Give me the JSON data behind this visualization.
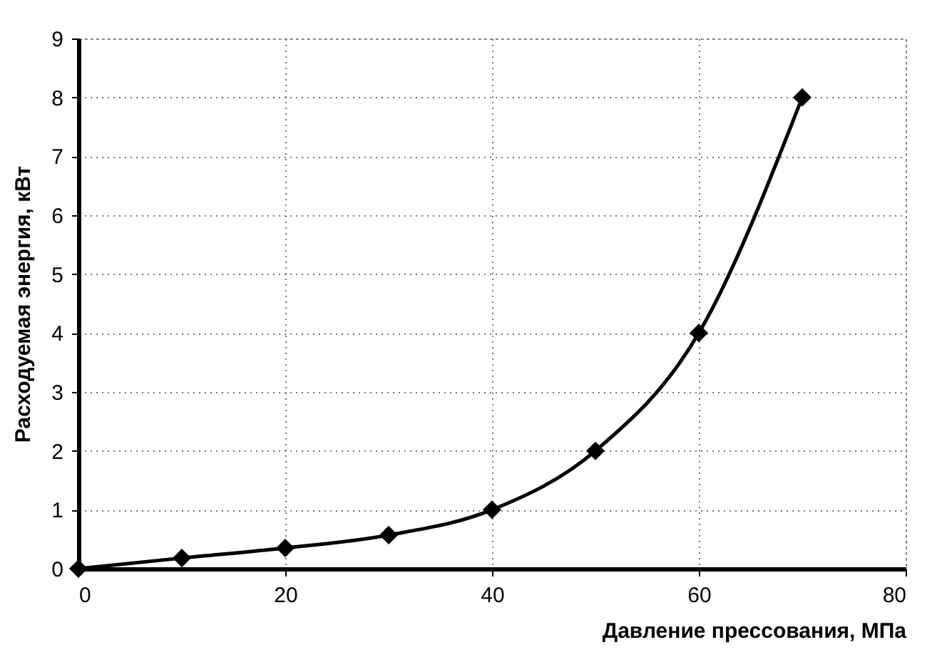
{
  "chart_data": {
    "type": "line",
    "xlabel": "Давление прессования, МПа",
    "ylabel": "Расходуемая энергия, кВт",
    "x": [
      0,
      10,
      20,
      30,
      40,
      50,
      60,
      70
    ],
    "series": [
      {
        "color": "#000000",
        "values": [
          0,
          0.18,
          0.35,
          0.57,
          1.0,
          2.0,
          4.0,
          8.0
        ]
      }
    ],
    "xlim": [
      0,
      80
    ],
    "xticks": [
      0,
      20,
      40,
      60,
      80
    ],
    "ylim": [
      0,
      9
    ],
    "yticks": [
      0,
      1,
      2,
      3,
      4,
      5,
      6,
      7,
      8,
      9
    ],
    "grid": true,
    "marker": "diamond",
    "line_style": "solid"
  }
}
